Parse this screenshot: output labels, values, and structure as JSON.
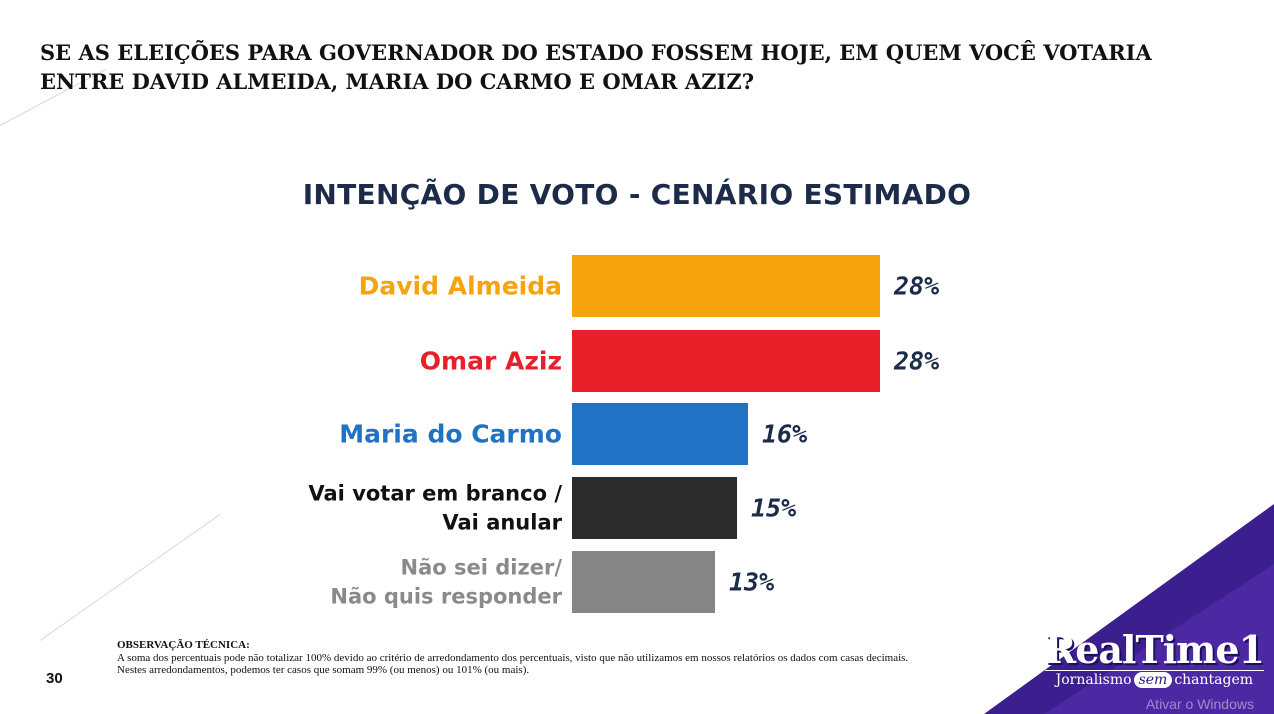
{
  "question": "SE AS ELEIÇÕES PARA GOVERNADOR DO ESTADO FOSSEM HOJE, EM QUEM VOCÊ VOTARIA ENTRE DAVID ALMEIDA, MARIA DO CARMO E OMAR AZIZ?",
  "chart_data": {
    "type": "bar",
    "orientation": "horizontal",
    "title": "INTENÇÃO DE VOTO - CENÁRIO ESTIMADO",
    "categories": [
      [
        "David Almeida"
      ],
      [
        "Omar Aziz"
      ],
      [
        "Maria do Carmo"
      ],
      [
        "Vai votar em branco /",
        "Vai anular"
      ],
      [
        "Não sei dizer/",
        "Não quis responder"
      ]
    ],
    "values": [
      28,
      28,
      16,
      15,
      13
    ],
    "value_labels": [
      "28%",
      "28%",
      "16%",
      "15%",
      "13%"
    ],
    "colors": [
      "#f7a30c",
      "#e8202a",
      "#1f72c4",
      "#2b2b2b",
      "#858585"
    ],
    "label_colors": [
      "#f7a30c",
      "#e8202a",
      "#1f72c4",
      "#111111",
      "#8a8a8a"
    ],
    "value_color": "#1b2b48",
    "grid": false,
    "legend": "none"
  },
  "note": {
    "title": "OBSERVAÇÃO TÉCNICA:",
    "line1": "A soma dos percentuais pode não totalizar 100% devido ao critério de arredondamento dos percentuais, visto que não utilizamos em nossos relatórios os dados com casas decimais.",
    "line2": "Nestes arredondamentos, podemos ter casos que somam 99% (ou menos) ou 101% (ou mais)."
  },
  "page_number": "30",
  "logo": {
    "name": "RealTime1",
    "tagline_pre": "Jornalismo",
    "tagline_sem": "sem",
    "tagline_post": "chantagem"
  },
  "watermark": "Ativar o Windows"
}
